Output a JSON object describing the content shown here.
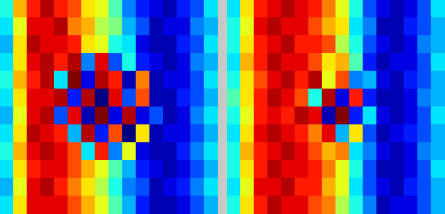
{
  "chart_data": [
    {
      "type": "heatmap",
      "zlim": [
        -1,
        1
      ],
      "tick_labels": false,
      "cells": [
        [
          -0.2,
          0.4,
          0.7,
          0.9,
          0.7,
          0.6,
          0.3,
          0.2,
          -0.1,
          -0.5,
          -0.7,
          -0.8,
          -0.9,
          -0.7,
          -0.6,
          -0.3
        ],
        [
          -0.3,
          0.2,
          0.8,
          0.8,
          0.9,
          0.5,
          0.4,
          0.1,
          0.0,
          -0.4,
          -0.6,
          -0.9,
          -0.8,
          -0.8,
          -0.5,
          -0.4
        ],
        [
          -0.4,
          0.3,
          0.9,
          0.8,
          0.8,
          0.7,
          0.3,
          0.2,
          -0.2,
          -0.3,
          -0.8,
          -0.9,
          -0.9,
          -0.7,
          -0.6,
          -0.3
        ],
        [
          -0.3,
          0.3,
          0.8,
          0.9,
          0.7,
          0.9,
          -0.5,
          0.8,
          -0.6,
          -0.2,
          -0.7,
          -0.8,
          -0.9,
          -0.8,
          -0.5,
          -0.4
        ],
        [
          -0.2,
          0.4,
          0.7,
          0.9,
          -0.3,
          1.0,
          -0.8,
          0.9,
          0.7,
          -0.9,
          0.5,
          -0.9,
          -0.8,
          -0.8,
          -0.6,
          -0.3
        ],
        [
          -0.3,
          0.3,
          0.8,
          0.8,
          0.9,
          -0.7,
          0.9,
          -1.0,
          0.8,
          -0.6,
          0.6,
          -0.9,
          -0.9,
          -0.7,
          -0.6,
          -0.4
        ],
        [
          -0.4,
          0.2,
          0.8,
          0.9,
          -0.6,
          0.8,
          -0.9,
          1.0,
          -0.8,
          0.9,
          -0.8,
          -0.6,
          -0.9,
          -0.8,
          -0.5,
          -0.3
        ],
        [
          -0.3,
          0.3,
          0.9,
          0.8,
          0.7,
          -0.4,
          0.9,
          -0.7,
          0.6,
          -1.0,
          0.3,
          -0.9,
          -0.8,
          -0.8,
          -0.6,
          -0.4
        ],
        [
          -0.2,
          0.4,
          0.8,
          0.9,
          0.8,
          0.6,
          -0.3,
          0.7,
          -0.5,
          0.2,
          -0.8,
          -0.9,
          -0.9,
          -0.7,
          -0.5,
          -0.3
        ],
        [
          -0.3,
          0.3,
          0.7,
          0.8,
          0.8,
          0.6,
          0.4,
          0.2,
          -0.1,
          -0.4,
          -0.7,
          -0.8,
          -0.9,
          -0.8,
          -0.6,
          -0.4
        ],
        [
          -0.4,
          0.2,
          0.8,
          0.9,
          0.7,
          0.5,
          0.3,
          0.1,
          -0.2,
          -0.5,
          -0.6,
          -0.9,
          -0.8,
          -0.7,
          -0.5,
          -0.3
        ],
        [
          -0.3,
          0.3,
          0.8,
          0.8,
          0.8,
          0.6,
          0.4,
          0.2,
          -0.1,
          -0.4,
          -0.7,
          -0.9,
          -0.9,
          -0.8,
          -0.6,
          -0.4
        ]
      ]
    },
    {
      "type": "heatmap",
      "zlim": [
        -1,
        1
      ],
      "tick_labels": false,
      "cells": [
        [
          -0.3,
          0.3,
          0.7,
          0.8,
          0.9,
          0.8,
          0.7,
          0.5,
          0.2,
          -0.2,
          -0.6,
          -0.8,
          -0.9,
          -0.8,
          -0.6,
          -0.3
        ],
        [
          -0.2,
          0.2,
          0.8,
          0.9,
          0.8,
          0.8,
          0.6,
          0.4,
          0.3,
          -0.3,
          -0.5,
          -0.9,
          -0.9,
          -0.7,
          -0.6,
          -0.4
        ],
        [
          -0.2,
          0.3,
          0.7,
          0.8,
          0.9,
          0.7,
          0.7,
          0.6,
          0.1,
          -0.2,
          -0.6,
          -0.8,
          -0.9,
          -0.8,
          -0.5,
          -0.4
        ],
        [
          -0.3,
          0.4,
          0.7,
          0.9,
          0.8,
          0.8,
          0.6,
          0.3,
          0.4,
          -0.1,
          -0.7,
          -0.9,
          -0.8,
          -0.8,
          -0.6,
          -0.3
        ],
        [
          -0.2,
          0.3,
          0.6,
          0.8,
          0.9,
          0.7,
          0.9,
          0.2,
          0.6,
          -0.5,
          -0.4,
          -0.8,
          -0.9,
          -0.7,
          -0.6,
          -0.4
        ],
        [
          -0.1,
          0.3,
          0.7,
          0.9,
          0.8,
          0.6,
          -0.2,
          0.9,
          -0.8,
          0.7,
          -0.7,
          -0.9,
          -0.9,
          -0.8,
          -0.5,
          -0.4
        ],
        [
          -0.2,
          0.2,
          0.7,
          0.8,
          0.7,
          0.9,
          0.8,
          -0.9,
          1.0,
          -0.7,
          -0.3,
          -0.8,
          -0.9,
          -0.8,
          -0.6,
          -0.3
        ],
        [
          -0.3,
          0.3,
          0.8,
          0.9,
          0.8,
          0.7,
          0.5,
          0.8,
          -0.4,
          0.3,
          -0.6,
          -0.9,
          -0.8,
          -0.7,
          -0.6,
          -0.4
        ],
        [
          -0.2,
          0.4,
          0.7,
          0.8,
          0.9,
          0.8,
          0.6,
          0.4,
          0.5,
          -0.3,
          -0.5,
          -0.8,
          -0.9,
          -0.8,
          -0.5,
          -0.4
        ],
        [
          -0.2,
          0.3,
          0.7,
          0.9,
          0.8,
          0.8,
          0.7,
          0.5,
          0.2,
          -0.2,
          -0.6,
          -0.9,
          -0.9,
          -0.8,
          -0.6,
          -0.3
        ],
        [
          -0.3,
          0.2,
          0.8,
          0.8,
          0.9,
          0.7,
          0.7,
          0.4,
          0.2,
          -0.3,
          -0.6,
          -0.8,
          -0.9,
          -0.7,
          -0.6,
          -0.4
        ],
        [
          -0.2,
          0.3,
          0.7,
          0.9,
          0.8,
          0.8,
          0.6,
          0.5,
          0.1,
          -0.2,
          -0.5,
          -0.9,
          -0.8,
          -0.8,
          -0.6,
          -0.4
        ]
      ]
    }
  ]
}
